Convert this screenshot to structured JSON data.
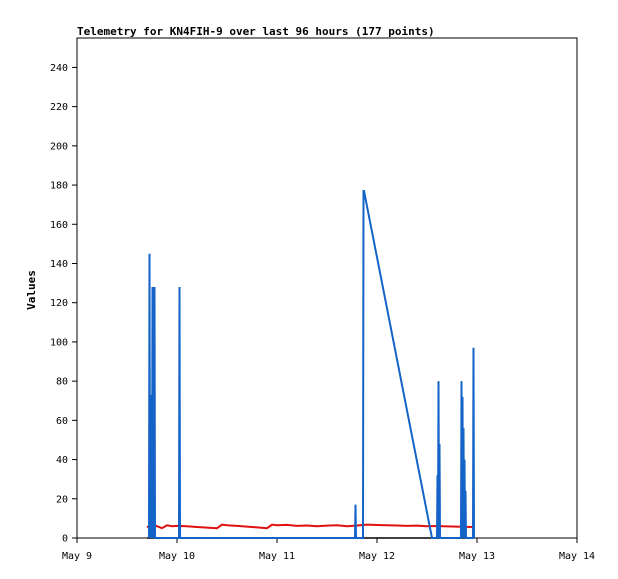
{
  "chart_data": {
    "type": "line",
    "title": "Telemetry for KN4FIH-9 over last 96 hours (177 points)",
    "xlabel": "",
    "ylabel": "Values",
    "x_tick_labels": [
      "May 9",
      "May 10",
      "May 11",
      "May 12",
      "May 13",
      "May 14"
    ],
    "xlim_days": [
      9,
      14
    ],
    "ylim": [
      0,
      255
    ],
    "y_ticks": [
      0,
      20,
      40,
      60,
      80,
      100,
      120,
      140,
      160,
      180,
      200,
      220,
      240
    ],
    "grid": false,
    "colors": {
      "blue": "#1463c8",
      "red": "#e01010",
      "black": "#000000"
    },
    "series": [
      {
        "color": "#1463c8",
        "x": [
          9.72,
          9.725,
          9.73,
          9.735,
          9.74,
          9.745,
          9.75,
          9.755,
          9.76,
          9.765,
          9.77,
          9.775,
          9.78,
          9.785,
          9.79,
          9.795,
          9.8,
          10.02,
          10.025,
          10.03,
          11.78,
          11.785,
          11.79,
          11.86,
          11.865,
          11.87,
          12.55,
          12.6,
          12.605,
          12.61,
          12.615,
          12.62,
          12.625,
          12.63,
          12.84,
          12.845,
          12.85,
          12.855,
          12.86,
          12.865,
          12.87,
          12.875,
          12.88,
          12.885,
          12.89,
          12.895,
          12.9,
          12.96,
          12.965,
          12.97
        ],
        "y": [
          0,
          145,
          0,
          73,
          0,
          33,
          0,
          128,
          0,
          33,
          0,
          128,
          0,
          0,
          0,
          0,
          0,
          0,
          128,
          0,
          0,
          17,
          0,
          0,
          177,
          177,
          0,
          0,
          32,
          0,
          80,
          0,
          48,
          0,
          0,
          80,
          0,
          72,
          0,
          56,
          0,
          40,
          0,
          24,
          0,
          0,
          0,
          0,
          97,
          0
        ]
      },
      {
        "color": "#e01010",
        "x": [
          9.7,
          9.75,
          9.8,
          9.85,
          9.9,
          9.95,
          10.0,
          10.1,
          10.2,
          10.3,
          10.4,
          10.45,
          10.5,
          10.6,
          10.7,
          10.8,
          10.9,
          10.95,
          11.0,
          11.1,
          11.2,
          11.3,
          11.4,
          11.5,
          11.6,
          11.7,
          11.8,
          11.9,
          12.0,
          12.1,
          12.2,
          12.3,
          12.4,
          12.5,
          12.6,
          12.7,
          12.8,
          12.9,
          12.97
        ],
        "y": [
          5.5,
          7.0,
          6.0,
          5.0,
          6.5,
          6.0,
          6.2,
          6.0,
          5.6,
          5.3,
          5.0,
          6.8,
          6.5,
          6.2,
          5.8,
          5.4,
          5.0,
          6.8,
          6.5,
          6.7,
          6.2,
          6.4,
          6.0,
          6.3,
          6.5,
          6.0,
          6.4,
          6.8,
          6.6,
          6.5,
          6.4,
          6.2,
          6.3,
          6.0,
          6.1,
          5.9,
          5.8,
          5.7,
          5.6
        ]
      },
      {
        "color": "#000000",
        "x": [
          9.7,
          12.97
        ],
        "y": [
          0,
          0
        ]
      }
    ]
  }
}
